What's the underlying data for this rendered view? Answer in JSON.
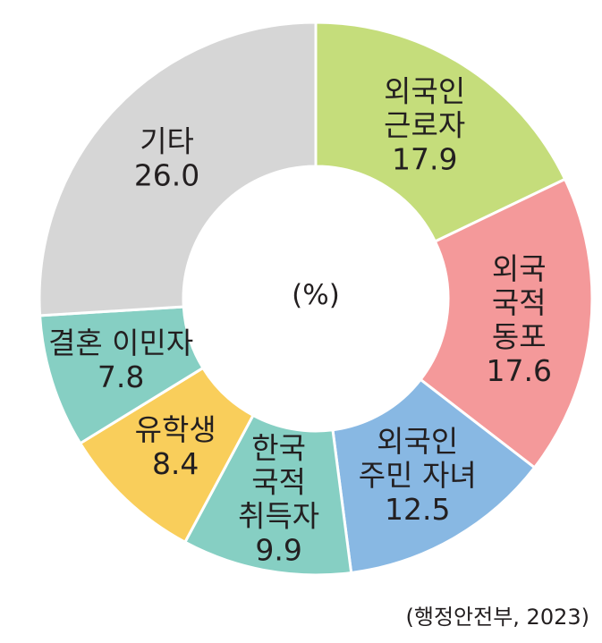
{
  "chart_data": {
    "type": "pie",
    "style": "donut",
    "center_label": "(%)",
    "slices": [
      {
        "lines": [
          "외국인",
          "근로자"
        ],
        "value": 17.9,
        "value_label": "17.9",
        "color": "#c5dd7b"
      },
      {
        "lines": [
          "외국",
          "국적",
          "동포"
        ],
        "value": 17.6,
        "value_label": "17.6",
        "color": "#f4999a"
      },
      {
        "lines": [
          "외국인",
          "주민 자녀"
        ],
        "value": 12.5,
        "value_label": "12.5",
        "color": "#88b8e3"
      },
      {
        "lines": [
          "한국",
          "국적",
          "취득자"
        ],
        "value": 9.9,
        "value_label": "9.9",
        "color": "#86cfc3"
      },
      {
        "lines": [
          "유학생"
        ],
        "value": 8.4,
        "value_label": "8.4",
        "color": "#f9ce5b"
      },
      {
        "lines": [
          "결혼 이민자"
        ],
        "value": 7.8,
        "value_label": "7.8",
        "color": "#86cfc3"
      },
      {
        "lines": [
          "기타"
        ],
        "value": 26.0,
        "value_label": "26.0",
        "color": "#d6d6d6"
      }
    ]
  },
  "source": "(행정안전부, 2023)"
}
